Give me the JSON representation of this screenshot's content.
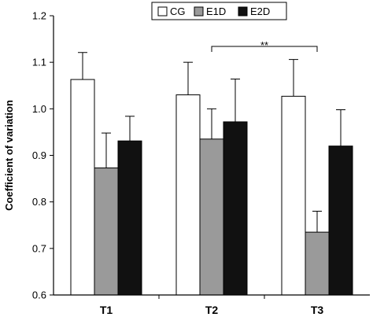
{
  "chart_data": {
    "type": "bar",
    "ylabel": "Coefficient of variation",
    "xlabel": "",
    "ylim": [
      0.6,
      1.2
    ],
    "yticks": [
      "0.6",
      "0.7",
      "0.8",
      "0.9",
      "1.0",
      "1.1",
      "1.2"
    ],
    "categories": [
      "T1",
      "T2",
      "T3"
    ],
    "series": [
      {
        "name": "CG",
        "color": "#ffffff",
        "values": [
          1.063,
          1.03,
          1.027
        ],
        "errors": [
          0.058,
          0.07,
          0.079
        ]
      },
      {
        "name": "E1D",
        "color": "#9a9a9a",
        "values": [
          0.873,
          0.935,
          0.735
        ],
        "errors": [
          0.075,
          0.065,
          0.045
        ]
      },
      {
        "name": "E2D",
        "color": "#111111",
        "values": [
          0.931,
          0.972,
          0.92
        ],
        "errors": [
          0.053,
          0.092,
          0.078
        ]
      }
    ],
    "legend": {
      "placement": "top-right"
    },
    "annotations": [
      {
        "text": "**",
        "from_category": "T2",
        "to_category": "T3"
      }
    ],
    "grid": false
  }
}
